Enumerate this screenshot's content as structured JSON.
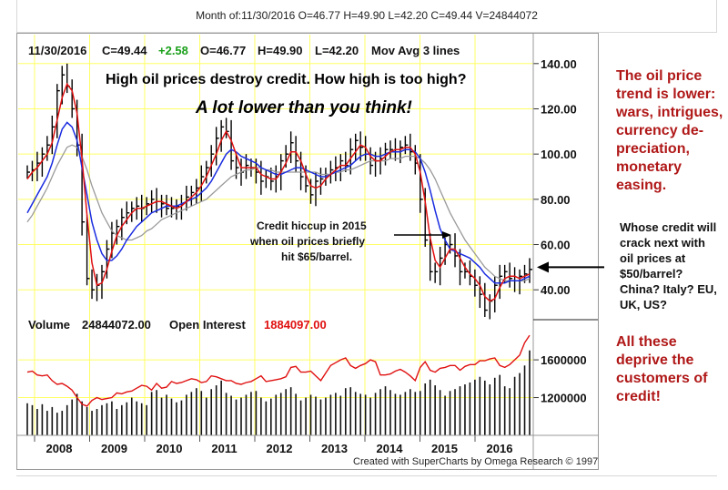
{
  "header": {
    "title": "Month of:11/30/2016 O=46.77 H=49.90 L=42.20 C=49.44 V=24844072"
  },
  "price_panel": {
    "date": "11/30/2016",
    "close": "C=49.44",
    "change": "+2.58",
    "open": "O=46.77",
    "high": "H=49.90",
    "low": "L=42.20",
    "study": "Mov Avg 3 lines",
    "headline": "High oil prices destroy credit. How high is too high?",
    "subheadline": "A lot lower than you think!",
    "annotation": [
      "Credit hiccup in 2015",
      "when oil prices briefly",
      "hit $65/barrel."
    ]
  },
  "volume_panel": {
    "volume_label": "Volume",
    "volume_value": "24844072.00",
    "oi_label": "Open Interest",
    "oi_value": "1884097.00"
  },
  "credit": "Created with SuperCharts by Omega Research © 1997",
  "side_notes": {
    "note1": "The oil price trend is lower: wars, intrigues, currency de-preciation, monetary easing.",
    "note2": "Whose credit will crack next with oil prices at $50/barrel? China? Italy? EU, UK, US?",
    "note3": "All these deprive the customers of credit!"
  },
  "colors": {
    "grid": "#ffff66",
    "ma_short": "#e01010",
    "ma_mid": "#1a2ce0",
    "ma_long": "#9a9a9a",
    "oi": "#e01010",
    "change": "#1aa01a",
    "note_red": "#b01818"
  },
  "chart_data": [
    {
      "type": "line",
      "panel": "price",
      "x_labels": [
        "2008",
        "2009",
        "2010",
        "2011",
        "2012",
        "2013",
        "2014",
        "2015",
        "2016"
      ],
      "y_ticks": [
        "140.00",
        "120.00",
        "100.00",
        "80.00",
        "60.00",
        "40.00"
      ],
      "ylim": [
        28,
        152
      ],
      "arrow_at": 50,
      "series": [
        {
          "values": [
            92,
            93,
            96,
            100,
            104,
            112,
            128,
            135,
            130,
            120,
            104,
            70,
            45,
            40,
            42,
            48,
            58,
            65,
            68,
            72,
            74,
            76,
            77,
            76,
            78,
            80,
            79,
            78,
            76,
            76,
            77,
            78,
            81,
            83,
            85,
            90,
            94,
            100,
            107,
            112,
            110,
            97,
            94,
            92,
            95,
            94,
            92,
            88,
            90,
            88,
            90,
            97,
            100,
            105,
            97,
            90,
            86,
            82,
            88,
            89,
            91,
            93,
            94,
            97,
            95,
            102,
            106,
            103,
            100,
            95,
            97,
            98,
            102,
            102,
            102,
            103,
            104,
            101,
            96,
            80,
            62,
            48,
            48,
            54,
            60,
            60,
            55,
            48,
            48,
            46,
            42,
            38,
            31,
            35,
            42,
            46,
            48,
            45,
            44,
            46,
            47,
            49
          ]
        },
        {
          "values": [
            89,
            92,
            94,
            97,
            100,
            105,
            115,
            125,
            131,
            128,
            118,
            98,
            73,
            52,
            42,
            43,
            49,
            57,
            64,
            68,
            71,
            74,
            76,
            76,
            77,
            78,
            79,
            79,
            78,
            77,
            76,
            77,
            79,
            81,
            83,
            86,
            90,
            95,
            100,
            106,
            110,
            106,
            100,
            94,
            94,
            94,
            94,
            91,
            90,
            89,
            89,
            92,
            96,
            101,
            101,
            97,
            91,
            86,
            85,
            86,
            89,
            91,
            93,
            95,
            95,
            98,
            101,
            104,
            103,
            99,
            97,
            97,
            99,
            101,
            102,
            102,
            103,
            103,
            100,
            92,
            79,
            63,
            53,
            50,
            54,
            58,
            58,
            54,
            50,
            47,
            45,
            42,
            37,
            35,
            36,
            41,
            45,
            46,
            46,
            45,
            46,
            47
          ]
        },
        {
          "values": [
            74,
            78,
            82,
            86,
            90,
            96,
            104,
            111,
            114,
            112,
            106,
            94,
            82,
            70,
            62,
            56,
            53,
            53,
            55,
            58,
            62,
            65,
            68,
            70,
            72,
            74,
            75,
            76,
            77,
            77,
            77,
            78,
            79,
            80,
            81,
            83,
            85,
            88,
            92,
            96,
            100,
            102,
            101,
            99,
            98,
            97,
            96,
            94,
            93,
            92,
            91,
            91,
            92,
            93,
            94,
            94,
            93,
            92,
            91,
            90,
            90,
            91,
            92,
            93,
            94,
            95,
            97,
            99,
            100,
            100,
            99,
            99,
            100,
            101,
            101,
            101,
            102,
            102,
            101,
            98,
            92,
            84,
            75,
            67,
            62,
            58,
            57,
            56,
            55,
            54,
            52,
            50,
            47,
            45,
            43,
            43,
            43,
            44,
            44,
            44,
            45,
            46
          ]
        },
        {
          "values": [
            70,
            73,
            77,
            81,
            85,
            90,
            95,
            99,
            103,
            104,
            103,
            99,
            93,
            86,
            80,
            74,
            70,
            66,
            64,
            63,
            62,
            62,
            63,
            64,
            66,
            67,
            69,
            71,
            72,
            73,
            74,
            75,
            76,
            77,
            78,
            79,
            80,
            82,
            84,
            86,
            88,
            90,
            91,
            92,
            93,
            93,
            94,
            94,
            93,
            93,
            92,
            92,
            92,
            92,
            92,
            92,
            92,
            92,
            92,
            91,
            91,
            91,
            92,
            92,
            93,
            93,
            94,
            95,
            96,
            97,
            97,
            97,
            97,
            98,
            98,
            98,
            99,
            99,
            99,
            98,
            96,
            93,
            89,
            84,
            79,
            74,
            70,
            66,
            62,
            59,
            56,
            53,
            50,
            48,
            46,
            45,
            44,
            44,
            44,
            44,
            44,
            45
          ]
        }
      ]
    },
    {
      "type": "bar",
      "panel": "volume",
      "y_ticks": [
        "1600000",
        "1200000"
      ],
      "ylim": [
        800000,
        1900000
      ],
      "series": [
        {
          "values": [
            1140000,
            1120000,
            1080000,
            1130000,
            1060000,
            1100000,
            1040000,
            1060000,
            1120000,
            1180000,
            1240000,
            1160000,
            1100000,
            1060000,
            1080000,
            1120000,
            1140000,
            1160000,
            1080000,
            1120000,
            1150000,
            1200000,
            1160000,
            1140000,
            1120000,
            1260000,
            1280000,
            1200000,
            1230000,
            1190000,
            1150000,
            1170000,
            1230000,
            1260000,
            1300000,
            1270000,
            1200000,
            1290000,
            1330000,
            1380000,
            1250000,
            1220000,
            1180000,
            1200000,
            1230000,
            1260000,
            1270000,
            1200000,
            1160000,
            1190000,
            1230000,
            1250000,
            1290000,
            1310000,
            1240000,
            1170000,
            1200000,
            1230000,
            1210000,
            1180000,
            1200000,
            1230000,
            1250000,
            1220000,
            1300000,
            1310000,
            1260000,
            1240000,
            1230000,
            1200000,
            1250000,
            1290000,
            1320000,
            1280000,
            1240000,
            1230000,
            1260000,
            1290000,
            1260000,
            1270000,
            1350000,
            1390000,
            1330000,
            1280000,
            1220000,
            1270000,
            1290000,
            1320000,
            1340000,
            1360000,
            1390000,
            1420000,
            1380000,
            1340000,
            1410000,
            1440000,
            1320000,
            1300000,
            1420000,
            1460000,
            1540000,
            1700000
          ]
        },
        {
          "values": [
            1470000,
            1480000,
            1440000,
            1430000,
            1440000,
            1380000,
            1340000,
            1350000,
            1320000,
            1280000,
            1200000,
            1130000,
            1110000,
            1170000,
            1200000,
            1180000,
            1190000,
            1200000,
            1250000,
            1240000,
            1260000,
            1270000,
            1300000,
            1330000,
            1320000,
            1280000,
            1350000,
            1300000,
            1310000,
            1370000,
            1350000,
            1360000,
            1380000,
            1400000,
            1390000,
            1360000,
            1370000,
            1430000,
            1420000,
            1400000,
            1380000,
            1380000,
            1350000,
            1340000,
            1360000,
            1370000,
            1400000,
            1430000,
            1370000,
            1380000,
            1390000,
            1400000,
            1420000,
            1520000,
            1530000,
            1470000,
            1470000,
            1480000,
            1430000,
            1380000,
            1460000,
            1540000,
            1570000,
            1600000,
            1620000,
            1540000,
            1510000,
            1540000,
            1560000,
            1600000,
            1580000,
            1440000,
            1440000,
            1450000,
            1480000,
            1500000,
            1470000,
            1430000,
            1380000,
            1520000,
            1580000,
            1490000,
            1470000,
            1510000,
            1520000,
            1540000,
            1540000,
            1490000,
            1530000,
            1550000,
            1550000,
            1590000,
            1590000,
            1610000,
            1620000,
            1540000,
            1520000,
            1550000,
            1600000,
            1650000,
            1780000,
            1860000
          ]
        }
      ]
    }
  ]
}
